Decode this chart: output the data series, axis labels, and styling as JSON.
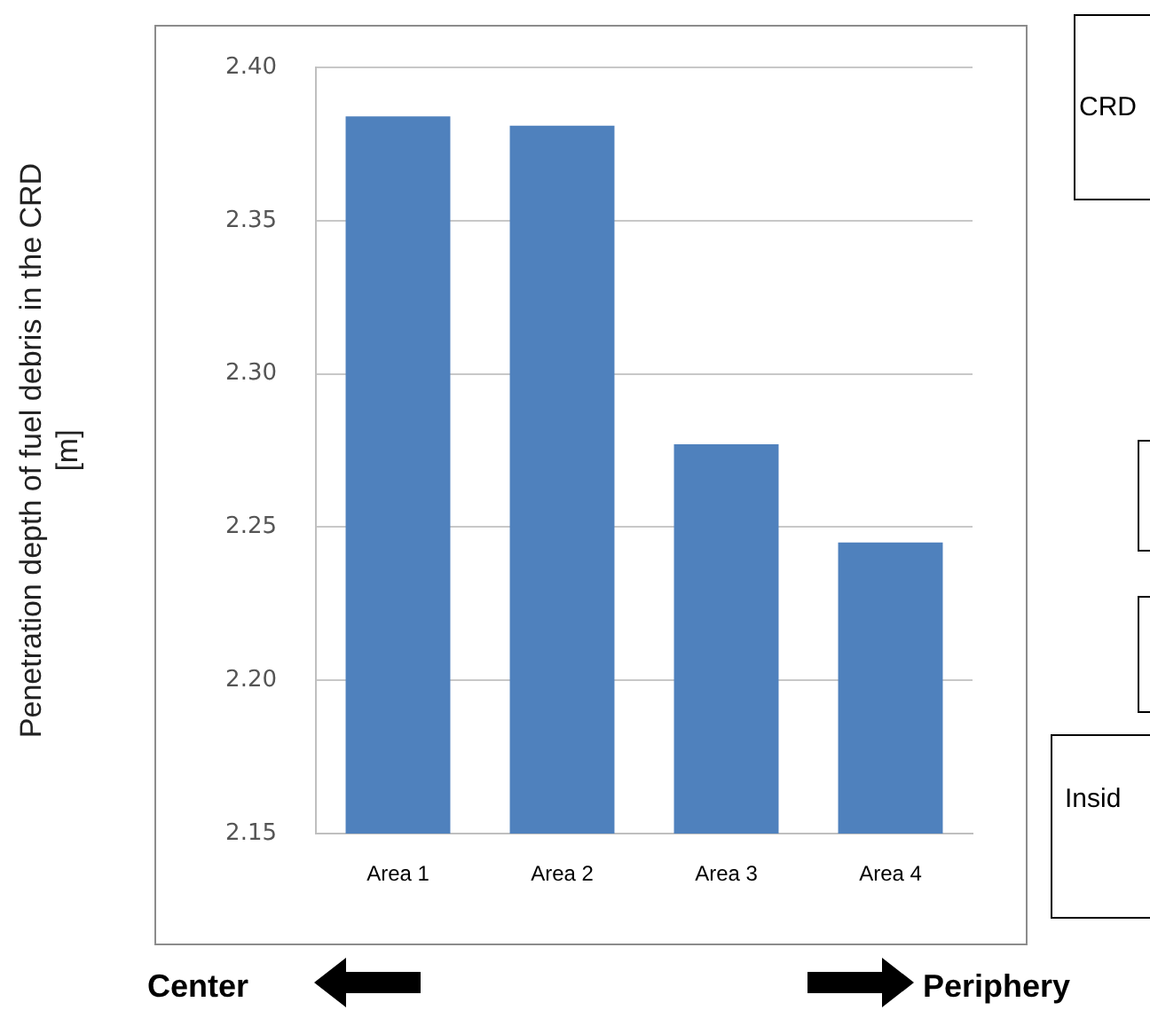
{
  "chart_data": {
    "type": "bar",
    "ylabel": "Penetration depth of fuel debris in the CRD\n[m]",
    "categories": [
      "Area 1",
      "Area 2",
      "Area 3",
      "Area 4"
    ],
    "values": [
      2.384,
      2.381,
      2.277,
      2.245
    ],
    "color": "#4f81bd",
    "ylim": [
      2.15,
      2.4
    ],
    "yticks": [
      {
        "value": 2.15,
        "label": "2.15"
      },
      {
        "value": 2.2,
        "label": "2.20"
      },
      {
        "value": 2.25,
        "label": "2.25"
      },
      {
        "value": 2.3,
        "label": "2.30"
      },
      {
        "value": 2.35,
        "label": "2.35"
      },
      {
        "value": 2.4,
        "label": "2.40"
      }
    ],
    "grid": "y",
    "legend": false,
    "annotations": [
      "CRD",
      "Insid",
      "Center",
      "Periphery"
    ]
  }
}
